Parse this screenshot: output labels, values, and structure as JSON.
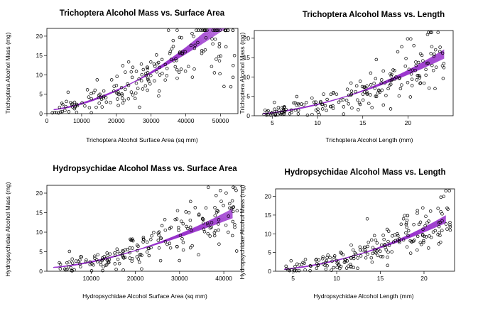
{
  "figure": {
    "purple_color": "#9932CC",
    "point_color": "#000000",
    "point_shape": "open-circle"
  },
  "chart_data": [
    {
      "type": "scatter",
      "title": "Trichoptera Alcohol Mass vs. Surface Area",
      "xlabel": "Trichoptera Alcohol Surface Area (sq mm)",
      "ylabel": "Trichoptera Alcohol Mass (mg)",
      "xlim": [
        0,
        55000
      ],
      "ylim": [
        0,
        22
      ],
      "xticks": [
        0,
        10000,
        20000,
        30000,
        40000,
        50000
      ],
      "yticks": [
        0,
        5,
        10,
        15,
        20
      ],
      "n_points": 200,
      "point_seed": 11,
      "x_range": [
        1500,
        54000
      ],
      "fit": {
        "form": "power",
        "a": 1.67,
        "b": 0.9,
        "k": 1.6,
        "xmin": 2000,
        "xmax": 52000,
        "n_lines": 14
      },
      "extra_points": [
        [
          35000,
          21.5
        ],
        [
          45000,
          16
        ],
        [
          54000,
          15
        ],
        [
          51000,
          7
        ]
      ],
      "legend": "none"
    },
    {
      "type": "scatter",
      "title": "Trichoptera Alcohol Mass vs. Length",
      "xlabel": "Trichoptera Alcohol Length (mm)",
      "ylabel": "Trichoptera Alcohol Mass (mg)",
      "xlim": [
        3,
        25
      ],
      "ylim": [
        0,
        22
      ],
      "xticks": [
        5,
        10,
        15,
        20
      ],
      "yticks": [
        0,
        5,
        10,
        15,
        20
      ],
      "n_points": 200,
      "point_seed": 23,
      "x_range": [
        4,
        24
      ],
      "fit": {
        "form": "power",
        "a": 0.0345,
        "b": 0.0,
        "k": 1.93,
        "xmin": 4,
        "xmax": 24,
        "n_lines": 14
      },
      "extra_points": [
        [
          22.5,
          21.5
        ],
        [
          16.5,
          14.5
        ],
        [
          23,
          7
        ]
      ],
      "legend": "none"
    },
    {
      "type": "scatter",
      "title": "Hydropsychidae Alcohol Mass vs. Surface Area",
      "xlabel": "Hydropsychidae Alcohol Surface Area (sq mm)",
      "ylabel": "Hydropsychidae Alcohol Mass (mg)",
      "xlim": [
        0,
        44000
      ],
      "ylim": [
        0,
        22
      ],
      "xticks": [
        10000,
        20000,
        30000,
        40000
      ],
      "yticks": [
        0,
        5,
        10,
        15,
        20
      ],
      "n_points": 200,
      "point_seed": 37,
      "x_range": [
        1500,
        43000
      ],
      "fit": {
        "form": "power",
        "a": 1.5,
        "b": 0.9,
        "k": 1.55,
        "xmin": 1500,
        "xmax": 42000,
        "n_lines": 14
      },
      "extra_points": [
        [
          36500,
          21.5
        ],
        [
          41000,
          10
        ],
        [
          43000,
          15.5
        ]
      ],
      "legend": "none"
    },
    {
      "type": "scatter",
      "title": "Hydropsychidae Alcohol Mass vs. Length",
      "xlabel": "Hydropsychidae Alcohol Length (mm)",
      "ylabel": "Hydropsychidae Alcohol Mass (mg)",
      "xlim": [
        3,
        23.5
      ],
      "ylim": [
        0,
        22
      ],
      "xticks": [
        5,
        10,
        15,
        20
      ],
      "yticks": [
        0,
        5,
        10,
        15,
        20
      ],
      "n_points": 200,
      "point_seed": 51,
      "x_range": [
        4,
        23
      ],
      "fit": {
        "form": "power",
        "a": 0.0352,
        "b": 0.0,
        "k": 1.92,
        "xmin": 4,
        "xmax": 22.5,
        "n_lines": 14
      },
      "extra_points": [
        [
          22.5,
          21.5
        ],
        [
          13.5,
          14
        ],
        [
          23,
          11
        ]
      ],
      "legend": "none"
    }
  ]
}
